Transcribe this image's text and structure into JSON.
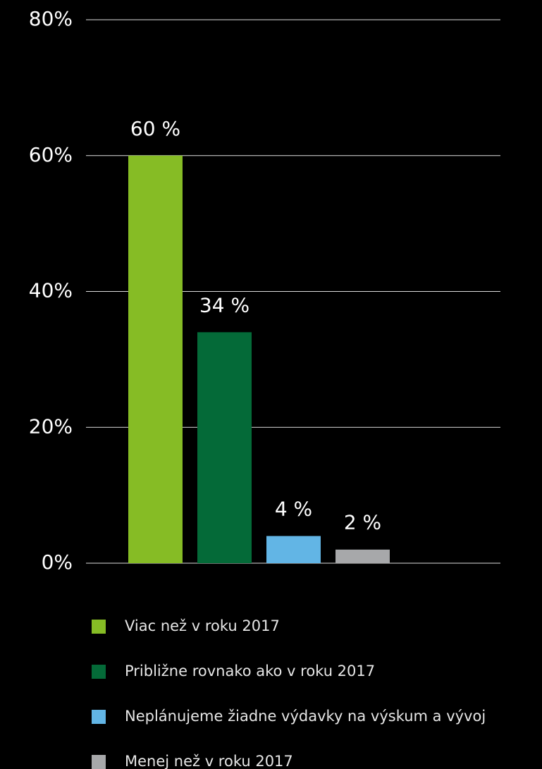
{
  "chart_data": {
    "type": "bar",
    "series": [
      {
        "name": "Viac než v roku 2017",
        "color": "#86bc25",
        "values": [
          60
        ],
        "value_labels": [
          "60 %"
        ]
      },
      {
        "name": "Približne rovnako ako v roku 2017",
        "color": "#046a38",
        "values": [
          34
        ],
        "value_labels": [
          "34 %"
        ]
      },
      {
        "name": "Neplánujeme žiadne výdavky na výskum a vývoj",
        "color": "#62b5e5",
        "values": [
          4
        ],
        "value_labels": [
          "4 %"
        ]
      },
      {
        "name": "Menej než v roku 2017",
        "color": "#a7a8aa",
        "values": [
          2
        ],
        "value_labels": [
          "2 %"
        ]
      }
    ],
    "ylim": [
      0,
      80
    ],
    "yticks": [
      {
        "value": 0,
        "label": "0%"
      },
      {
        "value": 20,
        "label": "20%"
      },
      {
        "value": 40,
        "label": "40%"
      },
      {
        "value": 60,
        "label": "60%"
      },
      {
        "value": 80,
        "label": "80%"
      }
    ],
    "grid": true
  }
}
